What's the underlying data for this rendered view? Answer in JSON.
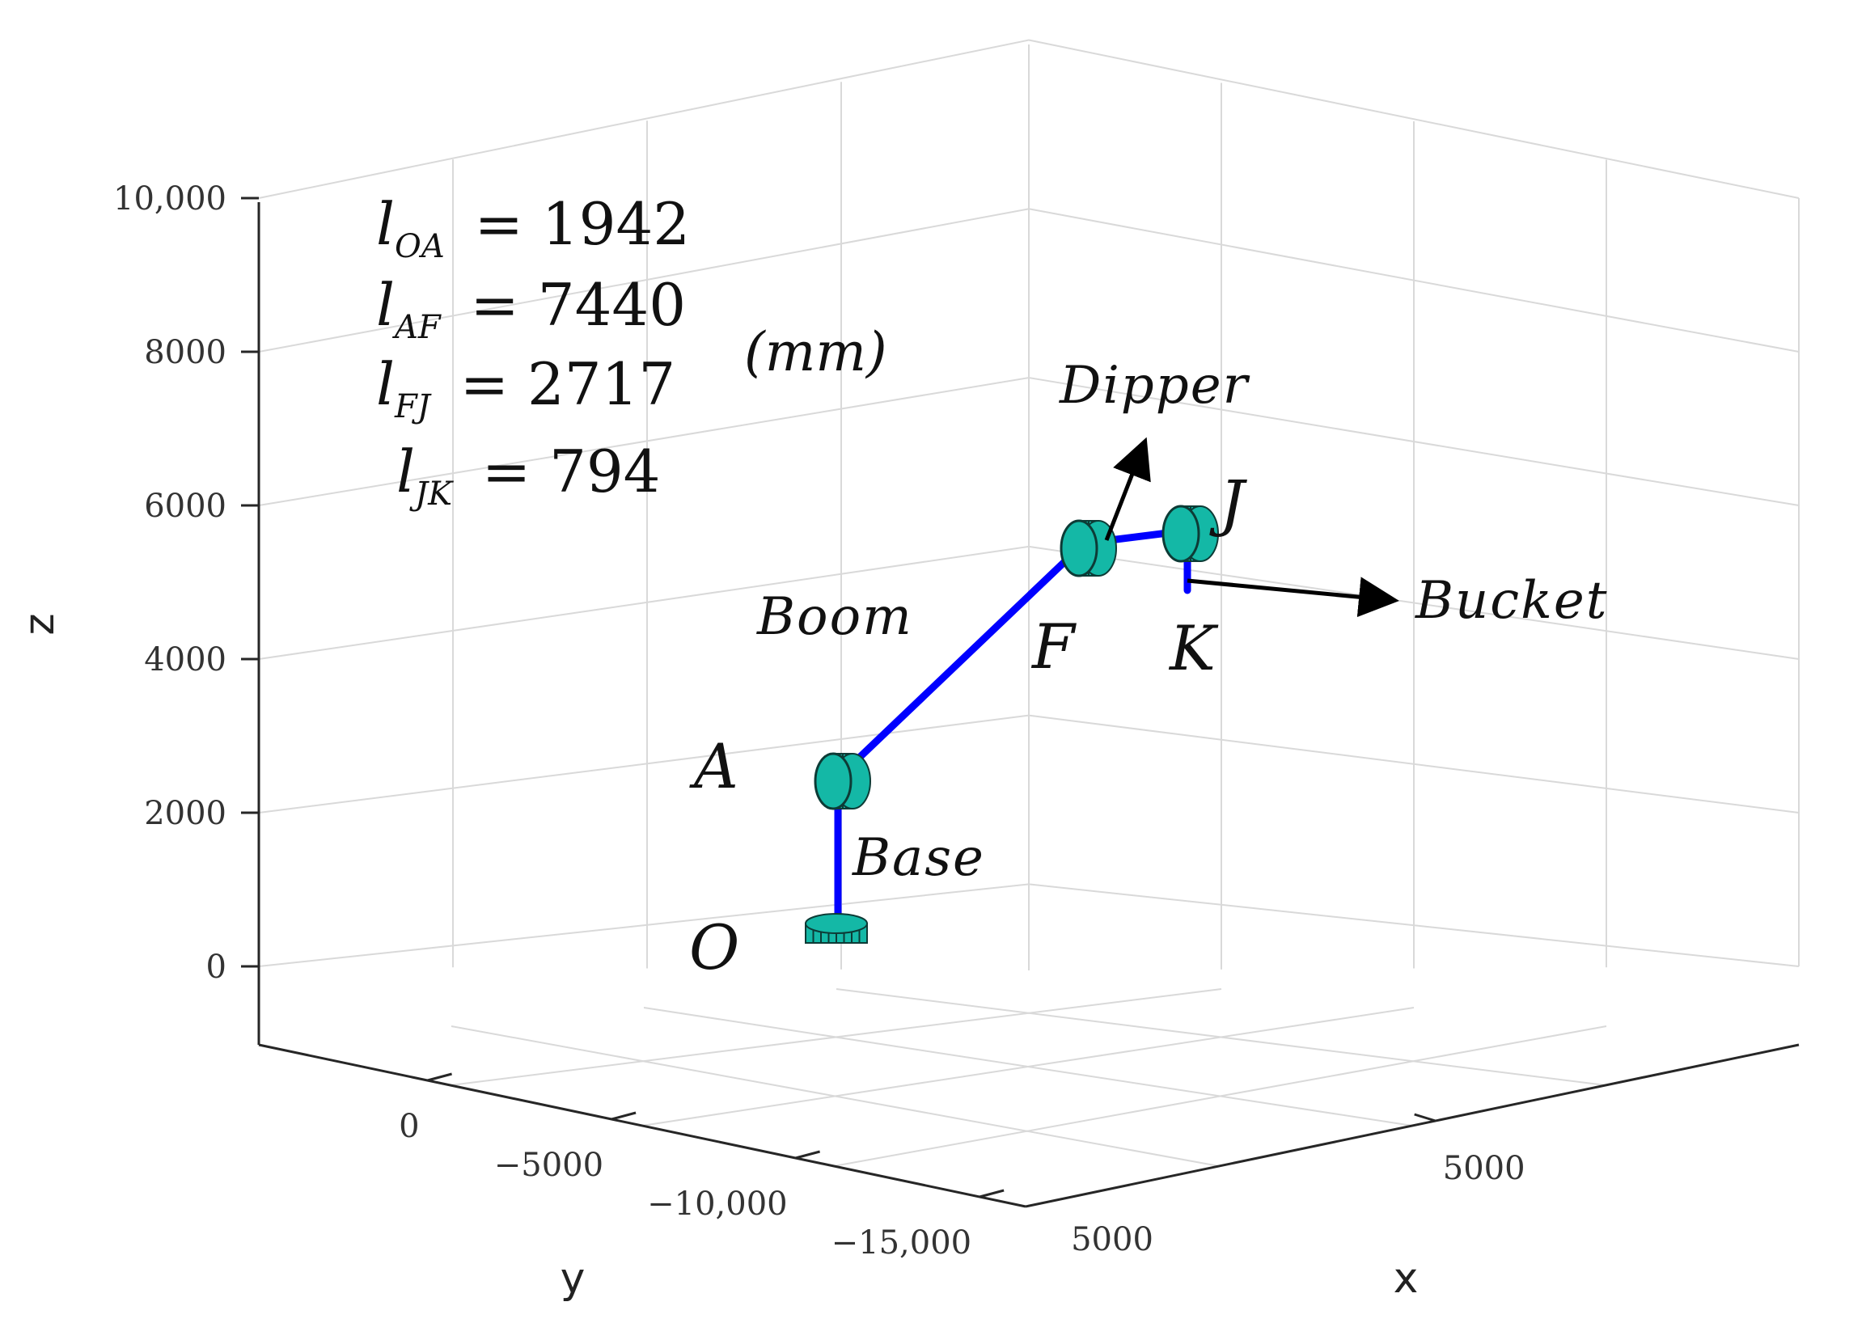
{
  "chart_data": {
    "type": "3d-line",
    "title": "",
    "xlabel": "x",
    "ylabel": "y",
    "zlabel": "z",
    "x_ticks": [
      {
        "value": 5000,
        "label": "5000"
      }
    ],
    "y_ticks": [
      {
        "value": 0,
        "label": "0"
      },
      {
        "value": -5000,
        "label": "−5000"
      },
      {
        "value": -10000,
        "label": "−10,000"
      },
      {
        "value": -15000,
        "label": "−15,000"
      }
    ],
    "z_ticks": [
      {
        "value": 0,
        "label": "0"
      },
      {
        "value": 2000,
        "label": "2000"
      },
      {
        "value": 4000,
        "label": "4000"
      },
      {
        "value": 6000,
        "label": "6000"
      },
      {
        "value": 8000,
        "label": "8000"
      },
      {
        "value": 10000,
        "label": "10,000"
      }
    ],
    "x_front_label": "5000",
    "grid": true,
    "link_color": "#0000ff",
    "joint_color": "#14b8a6",
    "joints": [
      {
        "name": "O",
        "label": "O"
      },
      {
        "name": "A",
        "label": "A"
      },
      {
        "name": "F",
        "label": "F"
      },
      {
        "name": "J",
        "label": "J"
      },
      {
        "name": "K",
        "label": "K"
      }
    ],
    "links": [
      {
        "name": "base",
        "label": "Base"
      },
      {
        "name": "boom",
        "label": "Boom"
      },
      {
        "name": "dipper",
        "label": "Dipper"
      },
      {
        "name": "bucket",
        "label": "Bucket"
      }
    ],
    "lengths": [
      {
        "symbol": "l",
        "subscript": "OA",
        "value": "1942"
      },
      {
        "symbol": "l",
        "subscript": "AF",
        "value": "7440"
      },
      {
        "symbol": "l",
        "subscript": "FJ",
        "value": "2717"
      },
      {
        "symbol": "l",
        "subscript": "JK",
        "value": "794"
      }
    ],
    "unit": "(mm)"
  }
}
